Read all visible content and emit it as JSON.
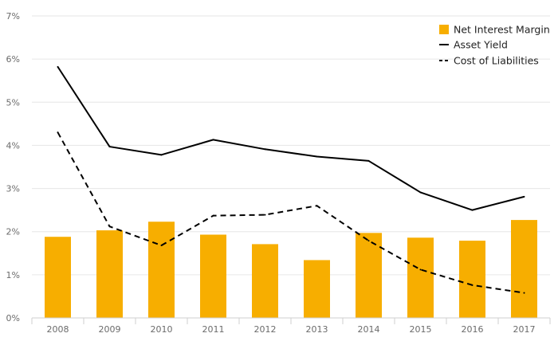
{
  "chart_data": {
    "type": "bar",
    "categories": [
      "2008",
      "2009",
      "2010",
      "2011",
      "2012",
      "2013",
      "2014",
      "2015",
      "2016",
      "2017"
    ],
    "series": [
      {
        "name": "Net Interest Margin",
        "kind": "bar",
        "color": "#f7ae00",
        "values": [
          1.88,
          2.03,
          2.23,
          1.93,
          1.71,
          1.34,
          1.97,
          1.86,
          1.79,
          2.27
        ]
      },
      {
        "name": "Asset Yield",
        "kind": "line",
        "style": "solid",
        "color": "#000000",
        "values": [
          5.82,
          3.97,
          3.78,
          4.13,
          3.91,
          3.74,
          3.64,
          2.91,
          2.5,
          2.81
        ]
      },
      {
        "name": "Cost of Liabilities",
        "kind": "line",
        "style": "dashed",
        "color": "#000000",
        "values": [
          4.3,
          2.12,
          1.68,
          2.37,
          2.39,
          2.6,
          1.79,
          1.12,
          0.76,
          0.58
        ]
      }
    ],
    "y_ticks": [
      "0%",
      "1%",
      "2%",
      "3%",
      "4%",
      "5%",
      "6%",
      "7%"
    ],
    "ylim": [
      0,
      7
    ],
    "grid": true,
    "legend_position": "top-right"
  }
}
